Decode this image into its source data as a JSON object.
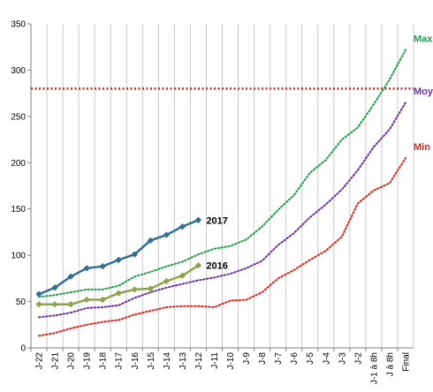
{
  "chart_data": {
    "type": "line",
    "title": "",
    "xlabel": "",
    "ylabel": "",
    "ylim": [
      0,
      350
    ],
    "yticks": [
      0,
      50,
      100,
      150,
      200,
      250,
      300,
      350
    ],
    "grid": {
      "vertical": true,
      "horizontal": false
    },
    "categories": [
      "J-22",
      "J-21",
      "J-20",
      "J-19",
      "J-18",
      "J-17",
      "J-16",
      "J-15",
      "J-14",
      "J-13",
      "J-12",
      "J-11",
      "J-10",
      "J-9",
      "J-8",
      "J-7",
      "J-6",
      "J-5",
      "J-4",
      "J-3",
      "J-2",
      "J-1 à 8h",
      "J à 8h",
      "Final"
    ],
    "series": [
      {
        "name": "2017",
        "style": "solid-marker",
        "color": "#31708f",
        "values": [
          58,
          65,
          77,
          86,
          88,
          95,
          101,
          116,
          122,
          131,
          138,
          null,
          null,
          null,
          null,
          null,
          null,
          null,
          null,
          null,
          null,
          null,
          null,
          null
        ]
      },
      {
        "name": "2016",
        "style": "solid-marker",
        "color": "#8fa34e",
        "values": [
          47,
          47,
          47,
          52,
          52,
          59,
          63,
          64,
          72,
          78,
          89,
          null,
          null,
          null,
          null,
          null,
          null,
          null,
          null,
          null,
          null,
          null,
          null,
          null
        ]
      },
      {
        "name": "Max",
        "style": "dotted",
        "color": "#1e9e4e",
        "values": [
          55,
          57,
          60,
          63,
          63,
          67,
          77,
          82,
          88,
          93,
          101,
          107,
          110,
          117,
          131,
          149,
          165,
          189,
          203,
          225,
          238,
          263,
          290,
          322
        ]
      },
      {
        "name": "Moy",
        "style": "dotted",
        "color": "#6a2fa0",
        "values": [
          33,
          35,
          38,
          43,
          44,
          46,
          54,
          60,
          65,
          69,
          73,
          76,
          80,
          86,
          94,
          111,
          124,
          141,
          155,
          171,
          192,
          217,
          236,
          265
        ]
      },
      {
        "name": "Min",
        "style": "dotted",
        "color": "#e3241b",
        "values": [
          13,
          16,
          21,
          25,
          28,
          30,
          36,
          40,
          44,
          45,
          45,
          44,
          51,
          52,
          60,
          75,
          84,
          95,
          105,
          120,
          156,
          170,
          178,
          205
        ]
      }
    ],
    "reference_line": {
      "value": 280,
      "color": "#e3241b",
      "style": "dotted"
    }
  }
}
